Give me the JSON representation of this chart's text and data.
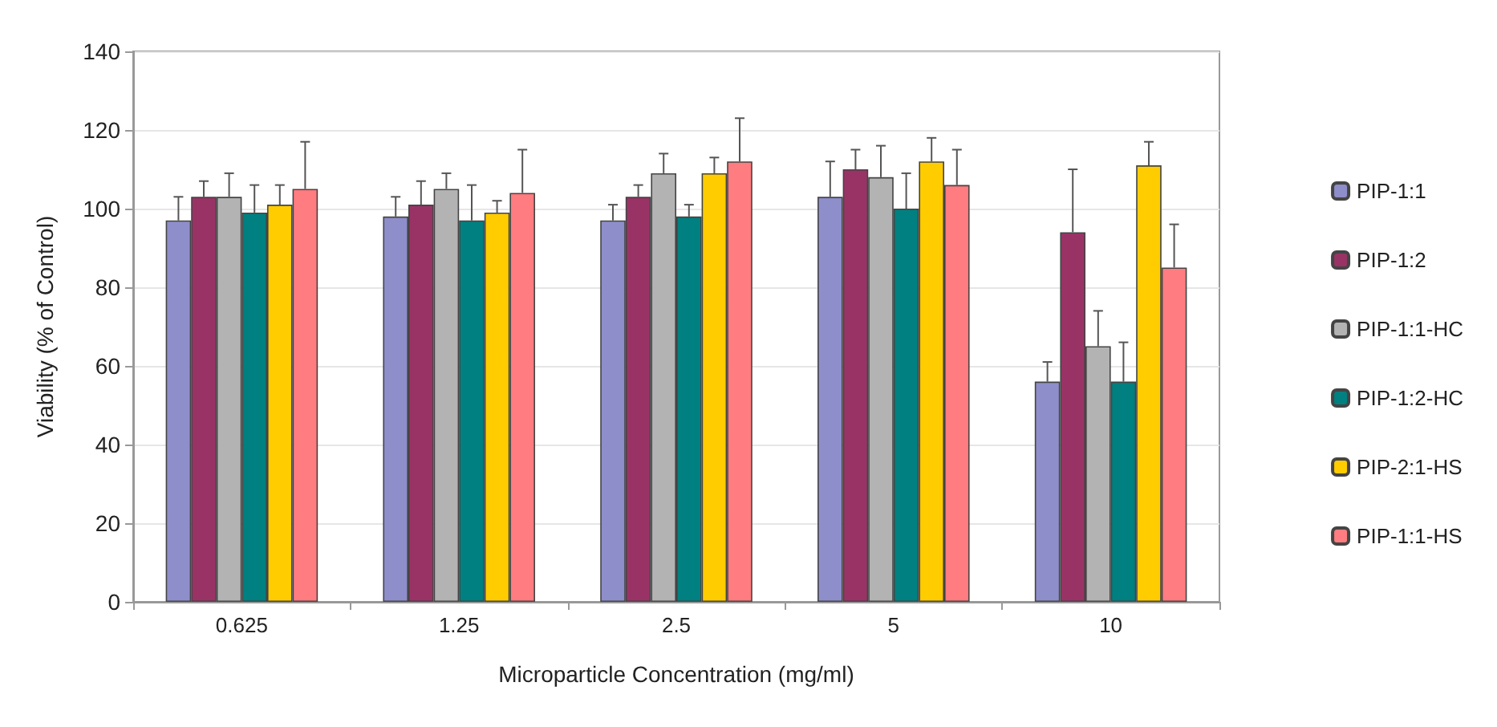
{
  "chart_data": {
    "type": "bar",
    "xlabel": "Microparticle Concentration (mg/ml)",
    "ylabel": "Viability (% of Control)",
    "categories": [
      "0.625",
      "1.25",
      "2.5",
      "5",
      "10"
    ],
    "series": [
      {
        "name": "PIP-1:1",
        "color": "#8e8ecb",
        "values": [
          97,
          98,
          97,
          103,
          56
        ],
        "errors": [
          [
            97,
            103
          ],
          [
            98,
            103
          ],
          [
            97,
            101
          ],
          [
            103,
            112
          ],
          [
            56,
            61
          ]
        ]
      },
      {
        "name": "PIP-1:2",
        "color": "#993366",
        "values": [
          103,
          101,
          103,
          110,
          94
        ],
        "errors": [
          [
            103,
            107
          ],
          [
            101,
            107
          ],
          [
            103,
            106
          ],
          [
            110,
            115
          ],
          [
            94,
            110
          ]
        ]
      },
      {
        "name": "PIP-1:1-HC",
        "color": "#b3b3b3",
        "values": [
          103,
          105,
          109,
          108,
          65
        ],
        "errors": [
          [
            103,
            109
          ],
          [
            105,
            109
          ],
          [
            109,
            114
          ],
          [
            108,
            116
          ],
          [
            65,
            74
          ]
        ]
      },
      {
        "name": "PIP-1:2-HC",
        "color": "#008080",
        "values": [
          99,
          97,
          98,
          100,
          56
        ],
        "errors": [
          [
            99,
            106
          ],
          [
            97,
            106
          ],
          [
            98,
            101
          ],
          [
            100,
            109
          ],
          [
            56,
            66
          ]
        ]
      },
      {
        "name": "PIP-2:1-HS",
        "color": "#ffcc00",
        "values": [
          101,
          99,
          109,
          112,
          111
        ],
        "errors": [
          [
            101,
            106
          ],
          [
            99,
            102
          ],
          [
            109,
            113
          ],
          [
            112,
            118
          ],
          [
            111,
            117
          ]
        ]
      },
      {
        "name": "PIP-1:1-HS",
        "color": "#ff7c80",
        "values": [
          105,
          104,
          112,
          106,
          85
        ],
        "errors": [
          [
            105,
            117
          ],
          [
            104,
            115
          ],
          [
            112,
            123
          ],
          [
            106,
            115
          ],
          [
            85,
            96
          ]
        ]
      }
    ],
    "ylim": [
      0,
      140
    ],
    "yticks": [
      0,
      20,
      40,
      60,
      80,
      100,
      120,
      140
    ],
    "grid": "y",
    "legend": "right"
  }
}
